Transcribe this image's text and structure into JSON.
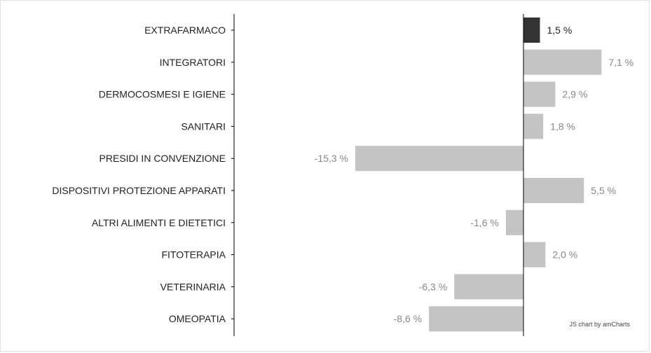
{
  "chart_data": {
    "type": "bar",
    "orientation": "horizontal",
    "categories": [
      "EXTRAFARMACO",
      "INTEGRATORI",
      "DERMOCOSMESI E IGIENE",
      "SANITARI",
      "PRESIDI IN CONVENZIONE",
      "DISPOSITIVI PROTEZIONE APPARATI",
      "ALTRI ALIMENTI E DIETETICI",
      "FITOTERAPIA",
      "VETERINARIA",
      "OMEOPATIA"
    ],
    "values": [
      1.5,
      7.1,
      2.9,
      1.8,
      -15.3,
      5.5,
      -1.6,
      2.0,
      -6.3,
      -8.6
    ],
    "value_labels": [
      "1,5 %",
      "7,1 %",
      "2,9 %",
      "1,8 %",
      "-15,3 %",
      "5,5 %",
      "-1,6 %",
      "2,0 %",
      "-6,3 %",
      "-8,6 %"
    ],
    "highlight_index": 0,
    "title": "",
    "xlabel": "",
    "ylabel": "",
    "xlim": [
      -15.3,
      7.1
    ],
    "grid": false,
    "colors": {
      "highlight": "#333333",
      "default": "#c4c4c4",
      "axis": "#000000"
    }
  },
  "credit": "JS chart by amCharts"
}
